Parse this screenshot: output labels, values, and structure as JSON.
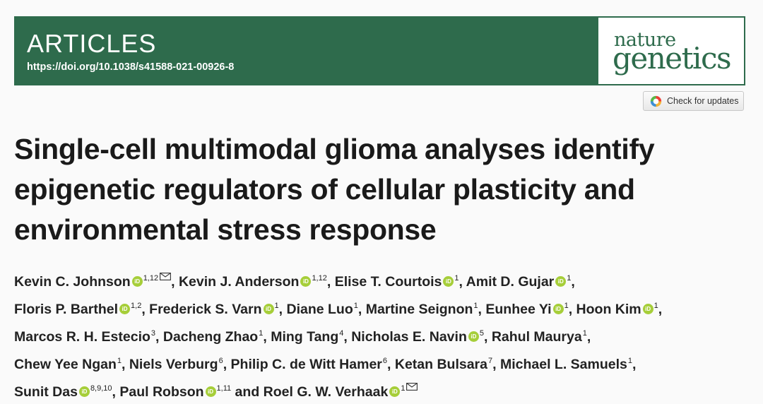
{
  "header": {
    "section_label": "ARTICLES",
    "doi": "https://doi.org/10.1038/s41588-021-00926-8",
    "journal_logo_line1": "nature",
    "journal_logo_line2": "genetics",
    "brand_color": "#2e6b4c"
  },
  "updates_button": {
    "label": "Check for updates",
    "icon": "crossmark-icon"
  },
  "article": {
    "title_lines": [
      "Single-cell multimodal glioma analyses identify",
      "epigenetic regulators of cellular plasticity and",
      "environmental stress response"
    ]
  },
  "authors": [
    {
      "name": "Kevin C. Johnson",
      "orcid": true,
      "aff": "1,12",
      "email": true
    },
    {
      "name": "Kevin J. Anderson",
      "orcid": true,
      "aff": "1,12",
      "email": false
    },
    {
      "name": "Elise T. Courtois",
      "orcid": true,
      "aff": "1",
      "email": false
    },
    {
      "name": "Amit D. Gujar",
      "orcid": true,
      "aff": "1",
      "email": false
    },
    {
      "name": "Floris P. Barthel",
      "orcid": true,
      "aff": "1,2",
      "email": false
    },
    {
      "name": "Frederick S. Varn",
      "orcid": true,
      "aff": "1",
      "email": false
    },
    {
      "name": "Diane Luo",
      "orcid": false,
      "aff": "1",
      "email": false
    },
    {
      "name": "Martine Seignon",
      "orcid": false,
      "aff": "1",
      "email": false
    },
    {
      "name": "Eunhee Yi",
      "orcid": true,
      "aff": "1",
      "email": false
    },
    {
      "name": "Hoon Kim",
      "orcid": true,
      "aff": "1",
      "email": false
    },
    {
      "name": "Marcos R. H. Estecio",
      "orcid": false,
      "aff": "3",
      "email": false
    },
    {
      "name": "Dacheng Zhao",
      "orcid": false,
      "aff": "1",
      "email": false
    },
    {
      "name": "Ming Tang",
      "orcid": false,
      "aff": "4",
      "email": false
    },
    {
      "name": "Nicholas E. Navin",
      "orcid": true,
      "aff": "5",
      "email": false
    },
    {
      "name": "Rahul Maurya",
      "orcid": false,
      "aff": "1",
      "email": false
    },
    {
      "name": "Chew Yee Ngan",
      "orcid": false,
      "aff": "1",
      "email": false
    },
    {
      "name": "Niels Verburg",
      "orcid": false,
      "aff": "6",
      "email": false
    },
    {
      "name": "Philip C. de Witt Hamer",
      "orcid": false,
      "aff": "6",
      "email": false
    },
    {
      "name": "Ketan Bulsara",
      "orcid": false,
      "aff": "7",
      "email": false
    },
    {
      "name": "Michael L. Samuels",
      "orcid": false,
      "aff": "1",
      "email": false
    },
    {
      "name": "Sunit Das",
      "orcid": true,
      "aff": "8,9,10",
      "email": false
    },
    {
      "name": "Paul Robson",
      "orcid": true,
      "aff": "1,11",
      "email": false
    },
    {
      "name": "Roel G. W. Verhaak",
      "orcid": true,
      "aff": "1",
      "email": true
    }
  ],
  "author_separator": ", ",
  "final_conjunction": " and "
}
